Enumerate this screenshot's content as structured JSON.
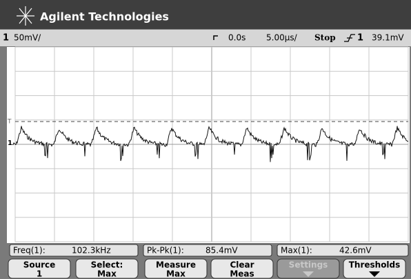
{
  "header": {
    "brand": "Agilent Technologies"
  },
  "status": {
    "channel": "1",
    "scale": "50mV/",
    "time_offset": "0.0s",
    "time_scale": "5.00µs/",
    "run_state": "Stop",
    "trigger_source": "1",
    "trigger_level": "39.1mV"
  },
  "screen": {
    "channel_marker": "1",
    "trigger_marker": "T"
  },
  "measurements": [
    {
      "label": "Freq(1):",
      "value": "102.3kHz"
    },
    {
      "label": "Pk-Pk(1):",
      "value": "85.4mV"
    },
    {
      "label": "Max(1):",
      "value": "42.6mV"
    }
  ],
  "softkeys": [
    {
      "label": "Source",
      "value": "1"
    },
    {
      "label": "Select:",
      "value": "Max"
    },
    {
      "label": "Measure",
      "value": "Max"
    },
    {
      "label": "Clear",
      "value": "Meas"
    },
    {
      "label": "Settings"
    },
    {
      "label": "Thresholds"
    }
  ]
}
